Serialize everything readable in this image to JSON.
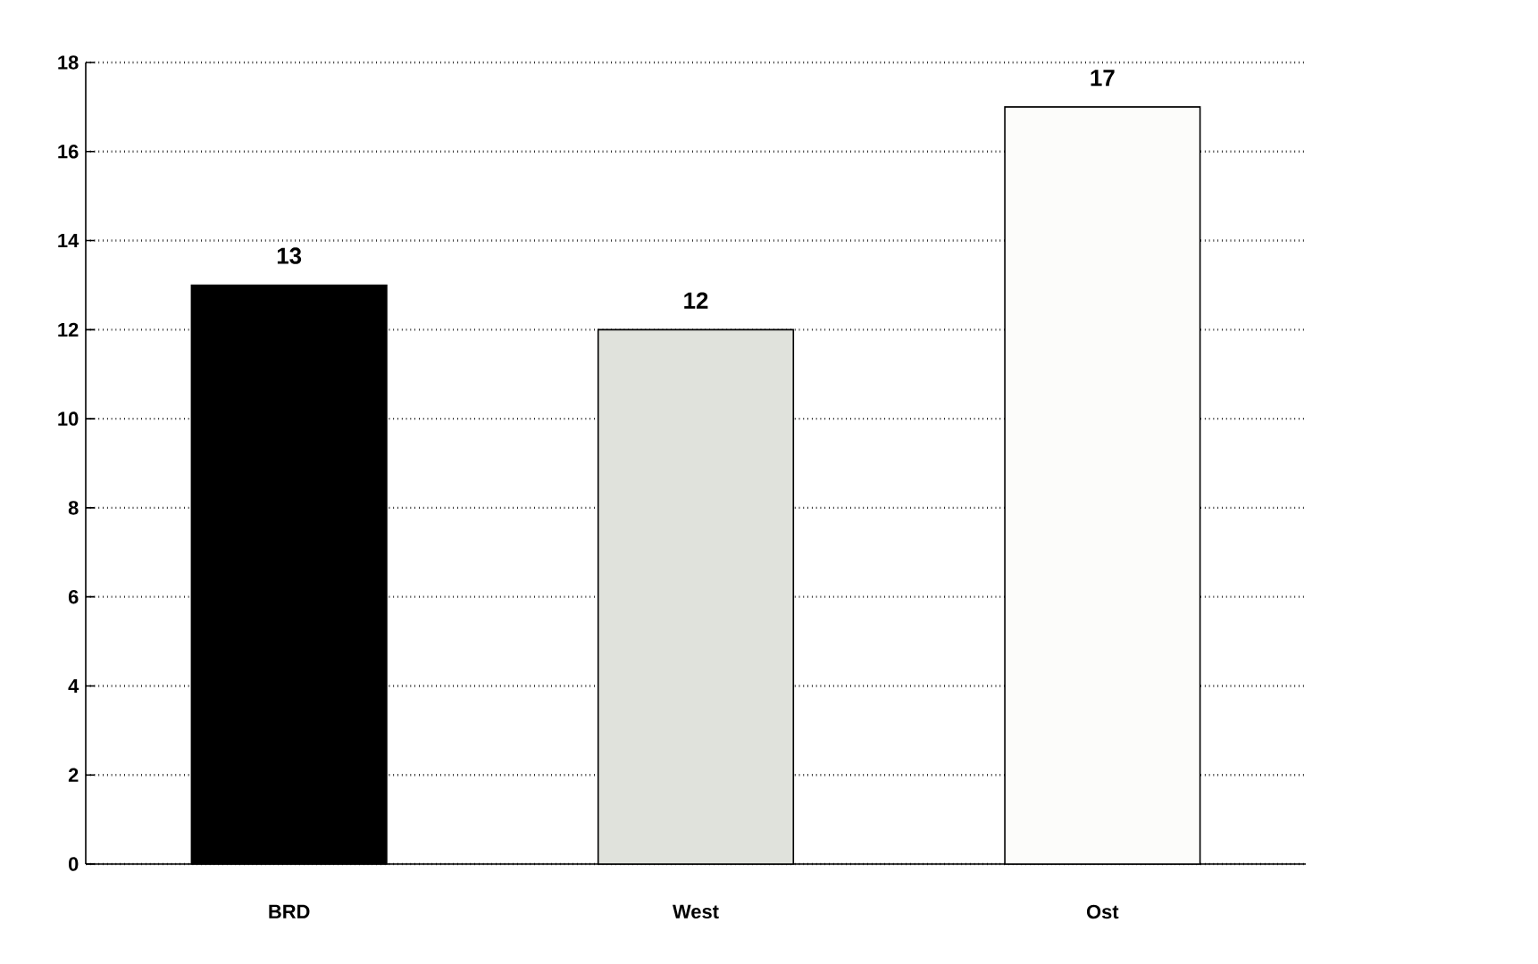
{
  "chart_data": {
    "type": "bar",
    "categories": [
      "BRD",
      "West",
      "Ost"
    ],
    "values": [
      13,
      12,
      17
    ],
    "colors": [
      "#000000",
      "#e0e2dc",
      "#fcfcfa"
    ],
    "ylim": [
      0,
      18
    ],
    "yticks": [
      0,
      2,
      4,
      6,
      8,
      10,
      12,
      14,
      16,
      18
    ],
    "grid": "y",
    "data_labels": true
  }
}
